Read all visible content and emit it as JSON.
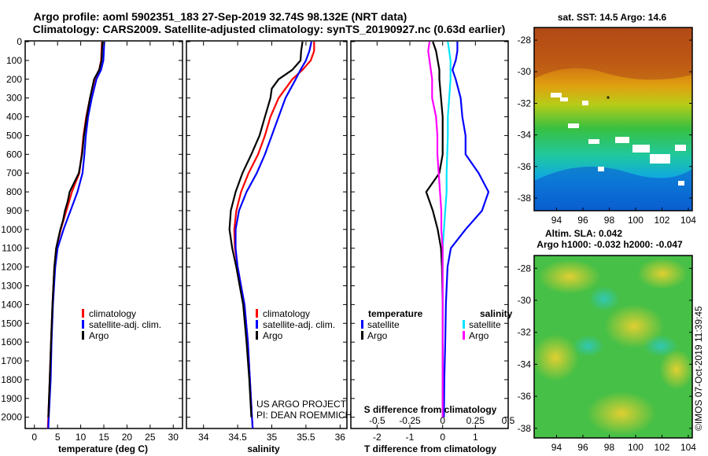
{
  "titles": {
    "line1": "Argo profile: aoml 5902351_183 27-Sep-2019 32.74S 98.132E (NRT data)",
    "line2": "Climatology: CARS2009. Satellite-adjusted climatology: synTS_20190927.nc (0.63d earlier)"
  },
  "colors": {
    "climatology": "#ff0000",
    "satellite": "#0000ff",
    "argo": "#000000",
    "sat_salinity": "#00e5ff",
    "argo_salinity": "#ff00ff"
  },
  "depth_ticks": [
    "0",
    "100",
    "200",
    "300",
    "400",
    "500",
    "600",
    "700",
    "800",
    "900",
    "1000",
    "1100",
    "1200",
    "1300",
    "1400",
    "1500",
    "1600",
    "1700",
    "1800",
    "1900",
    "2000"
  ],
  "legend": {
    "climatology": "climatology",
    "satellite_adj": "satellite-adj. clim.",
    "argo": "Argo",
    "temperature_head": "temperature",
    "salinity_head": "salinity",
    "satellite": "satellite"
  },
  "credit": {
    "project": "US ARGO PROJECT",
    "pi": "PI: DEAN ROEMMICH"
  },
  "sst_map": {
    "title": "sat. SST: 14.5 Argo: 14.6",
    "lat_ticks": [
      "-28",
      "-30",
      "-32",
      "-34",
      "-36",
      "-38"
    ],
    "lon_ticks": [
      "94",
      "96",
      "98",
      "100",
      "102",
      "104"
    ]
  },
  "sla_map": {
    "title1": "Altim. SLA: 0.042",
    "title2": "Argo h1000: -0.032 h2000: -0.047",
    "lat_ticks": [
      "-28",
      "-30",
      "-32",
      "-34",
      "-36",
      "-38"
    ],
    "lon_ticks": [
      "94",
      "96",
      "98",
      "100",
      "102",
      "104"
    ]
  },
  "footer": "©IMOS 07-Oct-2019 11:39:45",
  "chart_data": [
    {
      "type": "line",
      "title": "",
      "xlabel": "temperature (deg C)",
      "ylabel": "",
      "xlim": [
        -2,
        32
      ],
      "ylim": [
        2060,
        0
      ],
      "x_ticks": [
        "0",
        "5",
        "10",
        "15",
        "20",
        "25",
        "30"
      ],
      "series": [
        {
          "name": "climatology",
          "depth": [
            0,
            100,
            150,
            200,
            300,
            400,
            500,
            600,
            700,
            800,
            900,
            1000,
            1100,
            1200,
            1400,
            1600,
            1800,
            2000,
            2060
          ],
          "values": [
            14.6,
            14.4,
            14.0,
            13.0,
            12.0,
            11.2,
            10.6,
            10.2,
            9.7,
            8.1,
            6.9,
            5.7,
            4.7,
            4.3,
            3.9,
            3.6,
            3.3,
            3.0,
            2.9
          ]
        },
        {
          "name": "satellite-adj. clim.",
          "depth": [
            0,
            100,
            150,
            200,
            300,
            400,
            500,
            600,
            700,
            800,
            900,
            1000,
            1100,
            1200,
            1400,
            1600,
            1800,
            2000,
            2060
          ],
          "values": [
            15.1,
            14.9,
            14.4,
            13.4,
            12.4,
            11.6,
            11.1,
            10.8,
            10.4,
            9.3,
            7.8,
            6.3,
            5.0,
            4.5,
            4.0,
            3.7,
            3.5,
            3.1,
            3.0
          ]
        },
        {
          "name": "Argo",
          "depth": [
            0,
            100,
            150,
            200,
            300,
            400,
            500,
            600,
            700,
            800,
            850,
            900,
            950,
            1000,
            1100,
            1200,
            1400,
            1600,
            1800,
            2000
          ],
          "values": [
            14.7,
            14.5,
            14.0,
            12.9,
            12.0,
            11.3,
            10.7,
            10.3,
            9.6,
            7.6,
            7.2,
            6.6,
            6.2,
            5.6,
            4.7,
            4.3,
            3.9,
            3.6,
            3.3,
            3.0
          ]
        }
      ],
      "legend": [
        "climatology",
        "satellite-adj. clim.",
        "Argo"
      ]
    },
    {
      "type": "line",
      "title": "",
      "xlabel": "salinity",
      "ylabel": "",
      "xlim": [
        33.75,
        36.1
      ],
      "ylim": [
        2060,
        0
      ],
      "x_ticks": [
        "34",
        "34.5",
        "35",
        "35.5",
        "36"
      ],
      "series": [
        {
          "name": "climatology",
          "depth": [
            0,
            50,
            100,
            150,
            200,
            300,
            400,
            500,
            600,
            700,
            800,
            900,
            1000,
            1100,
            1200,
            1300,
            1400,
            1600,
            1800,
            2000,
            2060
          ],
          "values": [
            35.62,
            35.62,
            35.57,
            35.45,
            35.3,
            35.1,
            34.98,
            34.9,
            34.8,
            34.66,
            34.55,
            34.48,
            34.45,
            34.46,
            34.5,
            34.55,
            34.6,
            34.65,
            34.68,
            34.71,
            34.72
          ]
        },
        {
          "name": "satellite-adj. clim.",
          "depth": [
            0,
            50,
            100,
            150,
            200,
            300,
            400,
            500,
            600,
            700,
            800,
            900,
            1000,
            1100,
            1200,
            1300,
            1400,
            1600,
            1800,
            2000,
            2060
          ],
          "values": [
            35.58,
            35.55,
            35.5,
            35.42,
            35.35,
            35.2,
            35.1,
            35.0,
            34.9,
            34.78,
            34.63,
            34.52,
            34.47,
            34.47,
            34.5,
            34.55,
            34.6,
            34.65,
            34.68,
            34.71,
            34.72
          ]
        },
        {
          "name": "Argo",
          "depth": [
            0,
            50,
            100,
            150,
            200,
            250,
            300,
            400,
            500,
            600,
            700,
            800,
            900,
            1000,
            1100,
            1200,
            1300,
            1400,
            1600,
            1800,
            2000
          ],
          "values": [
            35.45,
            35.43,
            35.42,
            35.3,
            35.1,
            35.0,
            34.98,
            34.9,
            34.82,
            34.7,
            34.57,
            34.47,
            34.4,
            34.38,
            34.42,
            34.48,
            34.53,
            34.58,
            34.63,
            34.67,
            34.7
          ]
        }
      ],
      "legend": [
        "climatology",
        "satellite-adj. clim.",
        "Argo"
      ]
    },
    {
      "type": "line",
      "title": "",
      "xlabel": "T difference from climatology",
      "x2label": "S difference from climatology",
      "ylabel": "",
      "xlim": [
        -2.8,
        2.0
      ],
      "x2lim": [
        -0.7,
        0.5
      ],
      "ylim": [
        2060,
        0
      ],
      "x_ticks": [
        "-2",
        "-1",
        "0",
        "1"
      ],
      "x2_ticks": [
        "-0.5",
        "-0.25",
        "0",
        "0.25",
        "0.5"
      ],
      "series": [
        {
          "name": "temperature satellite",
          "axis": "T",
          "depth": [
            0,
            50,
            100,
            150,
            200,
            300,
            400,
            500,
            600,
            700,
            800,
            900,
            1000,
            1100,
            1200,
            1400,
            1600,
            1800,
            2000
          ],
          "values": [
            0.45,
            0.45,
            0.4,
            0.3,
            0.4,
            0.55,
            0.6,
            0.7,
            0.7,
            1.1,
            1.4,
            1.2,
            0.7,
            0.25,
            0.15,
            0.1,
            0.08,
            0.05,
            0.04
          ]
        },
        {
          "name": "temperature Argo",
          "axis": "T",
          "depth": [
            0,
            50,
            100,
            150,
            200,
            300,
            400,
            500,
            600,
            700,
            800,
            900,
            1000,
            1100,
            1200,
            1400,
            1600,
            1800,
            2000
          ],
          "values": [
            -0.3,
            -0.2,
            -0.15,
            -0.1,
            -0.1,
            -0.05,
            0.0,
            0.0,
            0.0,
            -0.1,
            -0.5,
            -0.3,
            -0.15,
            -0.05,
            -0.02,
            0.0,
            0.0,
            0.0,
            0.0
          ]
        },
        {
          "name": "salinity satellite",
          "axis": "S",
          "depth": [
            0,
            50,
            100,
            200,
            300,
            400,
            500,
            600,
            700,
            800,
            900,
            1000,
            1100,
            1200,
            1400,
            1600,
            1800,
            2000
          ],
          "values": [
            0.04,
            0.05,
            0.06,
            0.06,
            0.05,
            0.04,
            0.04,
            0.035,
            0.03,
            0.03,
            0.02,
            0.01,
            0.0,
            0.0,
            0.0,
            0.0,
            0.0,
            0.0
          ]
        },
        {
          "name": "salinity Argo",
          "axis": "S",
          "depth": [
            0,
            50,
            100,
            200,
            300,
            400,
            500,
            600,
            700,
            800,
            900,
            1000,
            1100,
            1200,
            1400,
            1600,
            1800,
            2000
          ],
          "values": [
            -0.1,
            -0.11,
            -0.1,
            -0.08,
            -0.08,
            -0.05,
            -0.04,
            -0.04,
            -0.03,
            -0.02,
            -0.01,
            -0.01,
            0.0,
            0.0,
            0.0,
            0.0,
            0.0,
            0.0
          ]
        }
      ],
      "legend": [
        "satellite (T)",
        "Argo (T)",
        "satellite (S)",
        "Argo (S)"
      ]
    }
  ]
}
